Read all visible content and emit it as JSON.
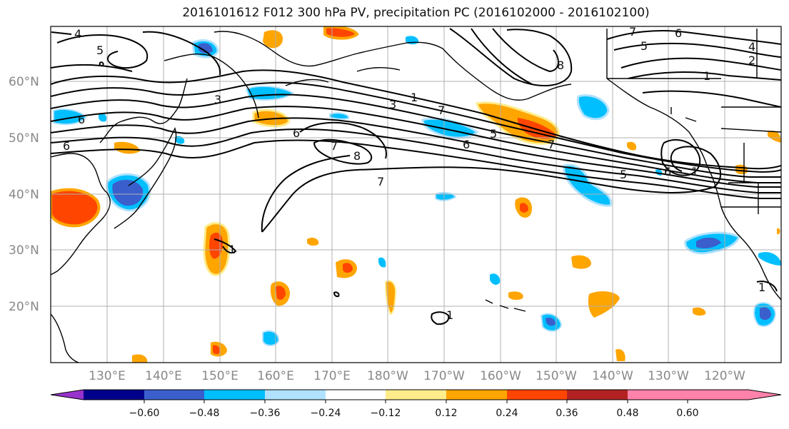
{
  "title": "2016101612 F012 300 hPa PV, precipitation PC (2016102000 - 2016102100)",
  "lat_labels": [
    "60°N",
    "50°N",
    "40°N",
    "30°N",
    "20°N"
  ],
  "lon_labels": [
    "130°E",
    "140°E",
    "150°E",
    "160°E",
    "170°E",
    "180°W",
    "170°W",
    "160°W",
    "150°W",
    "140°W",
    "130°W",
    "120°W"
  ],
  "colorbar": {
    "ticks": [
      "−0.60",
      "−0.48",
      "−0.36",
      "−0.24",
      "−0.12",
      "0.12",
      "0.24",
      "0.36",
      "0.48",
      "0.60"
    ],
    "colors": [
      "#9932CC",
      "#00008B",
      "#3A5FCD",
      "#00BFFF",
      "#B0E2FF",
      "#FFFFFF",
      "#FFEC8B",
      "#FFA500",
      "#FF4500",
      "#B22222",
      "#FF82AB"
    ]
  },
  "contour_labels": [
    "4",
    "5",
    "6",
    "6",
    "3",
    "1",
    "3",
    "7",
    "8",
    "6",
    "7",
    "7",
    "1",
    "5",
    "6",
    "5",
    "7",
    "8",
    "7",
    "6",
    "5",
    "4",
    "2",
    "1",
    "6",
    "1",
    "1",
    "1"
  ]
}
